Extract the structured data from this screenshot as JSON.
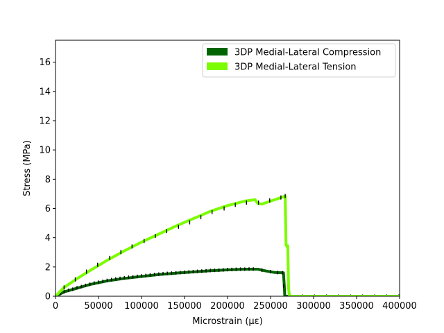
{
  "chart_data": {
    "type": "line",
    "title": "",
    "xlabel": "Microstrain (με)",
    "ylabel": "Stress (MPa)",
    "xlim": [
      0,
      400000
    ],
    "ylim": [
      0,
      17.5
    ],
    "xticks": [
      0,
      50000,
      100000,
      150000,
      200000,
      250000,
      300000,
      350000,
      400000
    ],
    "yticks": [
      0,
      2,
      4,
      6,
      8,
      10,
      12,
      14,
      16
    ],
    "grid": false,
    "legend_position": "top-right",
    "series": [
      {
        "name": "3DP Medial-Lateral Compression",
        "color": "#006400",
        "x": [
          0,
          10000,
          25000,
          40000,
          60000,
          80000,
          100000,
          120000,
          140000,
          160000,
          180000,
          200000,
          220000,
          235000,
          245000,
          255000,
          265000,
          266000,
          266500,
          400000
        ],
        "y": [
          0,
          0.3,
          0.55,
          0.8,
          1.05,
          1.22,
          1.35,
          1.48,
          1.58,
          1.66,
          1.74,
          1.8,
          1.85,
          1.85,
          1.72,
          1.62,
          1.6,
          0.7,
          0.0,
          0.0
        ],
        "error_x": [
          6000,
          10000,
          15000,
          20000,
          25000,
          30000,
          35000,
          40000,
          45000,
          50000,
          55000,
          60000,
          65000,
          70000,
          75000,
          80000,
          85000,
          90000,
          95000,
          100000,
          105000,
          110000,
          115000,
          120000,
          125000,
          130000,
          135000,
          140000,
          145000,
          150000,
          155000,
          160000,
          165000,
          170000,
          175000,
          180000,
          185000,
          190000,
          195000,
          200000,
          205000,
          210000,
          215000,
          220000,
          225000,
          230000,
          240000,
          250000,
          258000,
          264000,
          265000,
          273000,
          287000,
          301000,
          315000,
          329000,
          343000,
          357000,
          371000,
          385000,
          399000
        ],
        "error_y": [
          0.2,
          0.3,
          0.4,
          0.48,
          0.58,
          0.66,
          0.74,
          0.82,
          0.9,
          0.96,
          1.02,
          1.08,
          1.14,
          1.18,
          1.22,
          1.26,
          1.3,
          1.33,
          1.36,
          1.39,
          1.42,
          1.45,
          1.48,
          1.51,
          1.54,
          1.56,
          1.58,
          1.6,
          1.62,
          1.64,
          1.66,
          1.68,
          1.7,
          1.72,
          1.74,
          1.76,
          1.77,
          1.78,
          1.8,
          1.82,
          1.83,
          1.84,
          1.85,
          1.85,
          1.86,
          1.86,
          1.78,
          1.68,
          1.62,
          1.6,
          0.7,
          0.0,
          0.0,
          0.0,
          0.0,
          0.0,
          0.0,
          0.0,
          0.0,
          0.0,
          0.0
        ],
        "error_size": 0.12
      },
      {
        "name": "3DP Medial-Lateral Tension",
        "color": "#7CFC00",
        "x": [
          0,
          10000,
          25000,
          40000,
          60000,
          80000,
          100000,
          120000,
          140000,
          160000,
          180000,
          200000,
          220000,
          232000,
          235000,
          240000,
          250000,
          260000,
          267000,
          268000,
          269000,
          270000,
          271000,
          272000,
          400000
        ],
        "y": [
          0,
          0.6,
          1.2,
          1.75,
          2.45,
          3.1,
          3.7,
          4.25,
          4.8,
          5.3,
          5.8,
          6.2,
          6.5,
          6.6,
          6.35,
          6.3,
          6.5,
          6.7,
          6.85,
          3.5,
          3.4,
          3.45,
          0.5,
          0.0,
          0.0
        ],
        "error_x": [
          10000,
          23000,
          36000,
          49000,
          63000,
          76000,
          89000,
          103000,
          116000,
          129000,
          143000,
          156000,
          169000,
          182000,
          196000,
          209000,
          222000,
          236000,
          249000,
          262000,
          267000
        ],
        "error_y": [
          0.6,
          1.15,
          1.68,
          2.15,
          2.62,
          3.02,
          3.4,
          3.78,
          4.12,
          4.45,
          4.75,
          5.05,
          5.4,
          5.75,
          6.0,
          6.25,
          6.4,
          6.4,
          6.55,
          6.75,
          6.85
        ],
        "error_size": 0.14
      }
    ]
  }
}
